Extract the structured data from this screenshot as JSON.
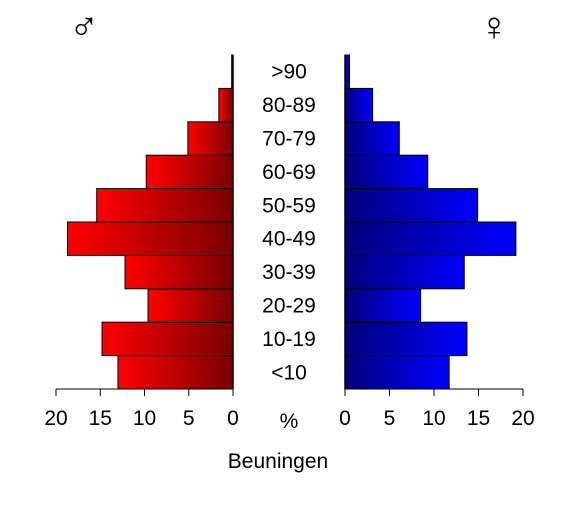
{
  "chart_data": {
    "type": "bar",
    "subtype": "population-pyramid",
    "title": "Beuningen",
    "center_label": "%",
    "categories": [
      "<10",
      "10-19",
      "20-29",
      "30-39",
      "40-49",
      "50-59",
      "60-69",
      "70-79",
      "80-89",
      ">90"
    ],
    "series": [
      {
        "symbol": "♂",
        "side": "left",
        "color": "#ff0000",
        "values": [
          13.0,
          14.8,
          9.6,
          12.2,
          18.7,
          15.4,
          9.8,
          5.1,
          1.6,
          0.15
        ]
      },
      {
        "symbol": "♀",
        "side": "right",
        "color": "#0000ff",
        "values": [
          11.7,
          13.7,
          8.5,
          13.4,
          19.2,
          14.9,
          9.3,
          6.1,
          3.1,
          0.5
        ]
      }
    ],
    "xlim": [
      0,
      20
    ],
    "ticks": [
      0,
      5,
      10,
      15,
      20
    ],
    "grid": false
  }
}
